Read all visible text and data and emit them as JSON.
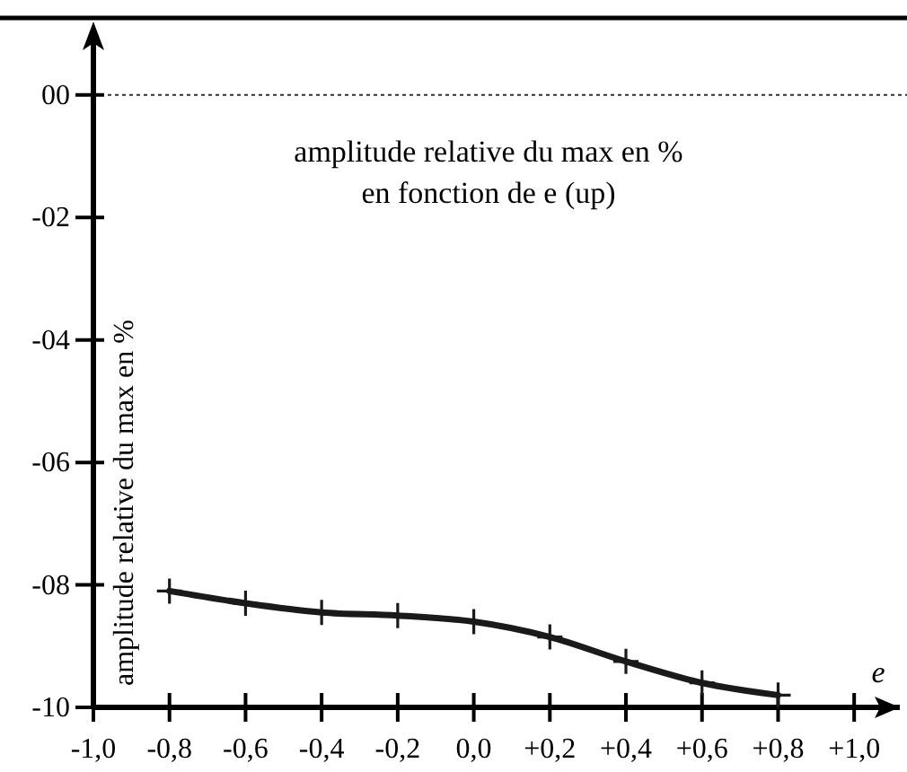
{
  "chart_data": {
    "type": "line",
    "title": "amplitude relative du max en %\nen fonction de e (up)",
    "xlabel": "e",
    "ylabel": "amplitude relative du max en %",
    "x": [
      -0.8,
      -0.6,
      -0.4,
      -0.2,
      0.0,
      0.2,
      0.4,
      0.6,
      0.8
    ],
    "series": [
      {
        "color": "#1a1a1a",
        "values": [
          -8.1,
          -8.3,
          -8.45,
          -8.5,
          -8.6,
          -8.85,
          -9.25,
          -9.6,
          -9.8
        ]
      }
    ],
    "xlim": [
      -1.0,
      1.12
    ],
    "ylim": [
      -10,
      1.2
    ],
    "xticks": [
      {
        "value": -1.0,
        "label": "-1,0"
      },
      {
        "value": -0.8,
        "label": "-0,8"
      },
      {
        "value": -0.6,
        "label": "-0,6"
      },
      {
        "value": -0.4,
        "label": "-0,4"
      },
      {
        "value": -0.2,
        "label": "-0,2"
      },
      {
        "value": 0.0,
        "label": "0,0"
      },
      {
        "value": 0.2,
        "label": "+0,2"
      },
      {
        "value": 0.4,
        "label": "+0,4"
      },
      {
        "value": 0.6,
        "label": "+0,6"
      },
      {
        "value": 0.8,
        "label": "+0,8"
      },
      {
        "value": 1.0,
        "label": "+1,0"
      }
    ],
    "yticks": [
      {
        "value": 0,
        "label": "00"
      },
      {
        "value": -2,
        "label": "-02"
      },
      {
        "value": -4,
        "label": "-04"
      },
      {
        "value": -6,
        "label": "-06"
      },
      {
        "value": -8,
        "label": "-08"
      },
      {
        "value": -10,
        "label": "-10"
      }
    ],
    "ref_lines": [
      {
        "axis": "y",
        "value": 0,
        "color": "#333333",
        "line_style": "dotted"
      }
    ],
    "marker": "cross",
    "line_style": "solid",
    "grid": false
  }
}
